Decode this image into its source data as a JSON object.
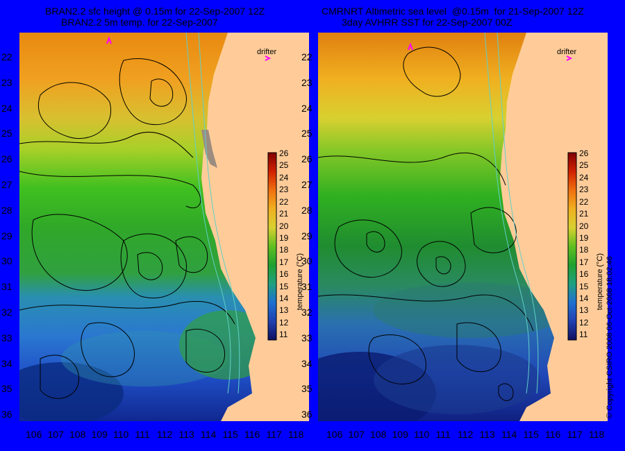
{
  "colors": {
    "background": "#0000FE",
    "land": "#FFCC99",
    "land_dark": "#9C8C80",
    "contour": "#000000",
    "bathy": "#60D0C8",
    "drifter": "#FF00FF"
  },
  "left_panel": {
    "title_line1": "BRAN2.2 sfc height @ 0.15m for 22-Sep-2007 12Z",
    "title_line2": "BRAN2.2 5m temp. for 22-Sep-2007",
    "drifter_label": "drifter"
  },
  "right_panel": {
    "title_line1": "CMRNRT Altimetric sea level  @0.15m  for 21-Sep-2007 12Z",
    "title_line2": "3day AVHRR SST for 22-Sep-2007 00Z",
    "drifter_label": "drifter"
  },
  "y_axis_labels": [
    "22",
    "23",
    "24",
    "25",
    "26",
    "27",
    "28",
    "29",
    "30",
    "31",
    "32",
    "33",
    "34",
    "35",
    "36"
  ],
  "x_axis_labels": [
    "106",
    "107",
    "108",
    "109",
    "110",
    "111",
    "112",
    "113",
    "114",
    "115",
    "116",
    "117",
    "118"
  ],
  "colorbar": {
    "ticks": [
      "26",
      "25",
      "24",
      "23",
      "22",
      "21",
      "20",
      "19",
      "18",
      "17",
      "16",
      "15",
      "14",
      "13",
      "12",
      "11"
    ],
    "label": "temperature (°C)"
  },
  "copyright": "© Copyright CSIRO 2008    06-Oct-2008 18:02:46"
}
